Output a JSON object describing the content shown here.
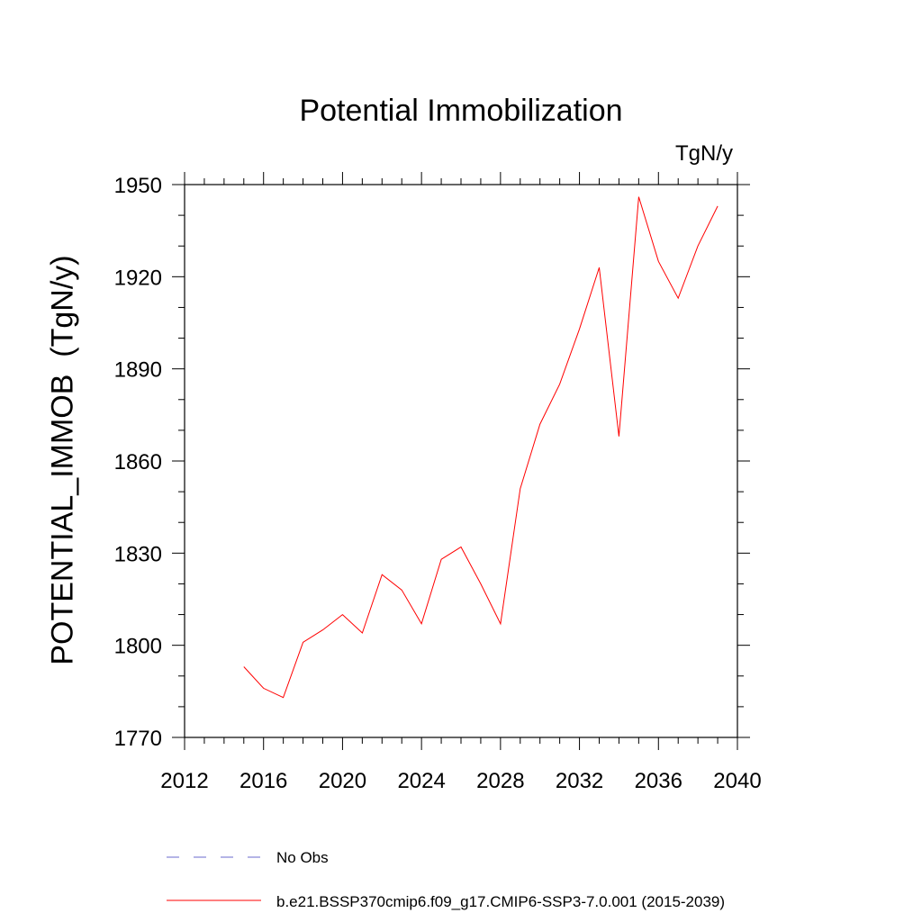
{
  "chart_data": {
    "type": "line",
    "title": "Potential Immobilization",
    "units": "TgN/y",
    "ylabel": "POTENTIAL_IMMOB  (TgN/y)",
    "xlabel": "",
    "xlim": [
      2012,
      2040
    ],
    "ylim": [
      1770,
      1950
    ],
    "x_ticks": [
      2012,
      2016,
      2020,
      2024,
      2028,
      2032,
      2036,
      2040
    ],
    "y_ticks": [
      1770,
      1800,
      1830,
      1860,
      1890,
      1920,
      1950
    ],
    "grid": false,
    "legend_position": "bottom",
    "series": [
      {
        "name": "b.e21.BSSP370cmip6.f09_g17.CMIP6-SSP3-7.0.001 (2015-2039)",
        "color": "#ff0000",
        "style": "solid",
        "x": [
          2015,
          2016,
          2017,
          2018,
          2019,
          2020,
          2021,
          2022,
          2023,
          2024,
          2025,
          2026,
          2027,
          2028,
          2029,
          2030,
          2031,
          2032,
          2033,
          2034,
          2035,
          2036,
          2037,
          2038,
          2039
        ],
        "values": [
          1793,
          1786,
          1783,
          1801,
          1805,
          1810,
          1804,
          1823,
          1818,
          1807,
          1828,
          1832,
          1820,
          1807,
          1851,
          1872,
          1885,
          1903,
          1923,
          1868,
          1946,
          1925,
          1913,
          1930,
          1943
        ]
      }
    ],
    "legend": [
      {
        "label": "No Obs",
        "color": "#6a6acd",
        "style": "dashed"
      },
      {
        "label": "b.e21.BSSP370cmip6.f09_g17.CMIP6-SSP3-7.0.001 (2015-2039)",
        "color": "#ff0000",
        "style": "solid"
      }
    ]
  }
}
